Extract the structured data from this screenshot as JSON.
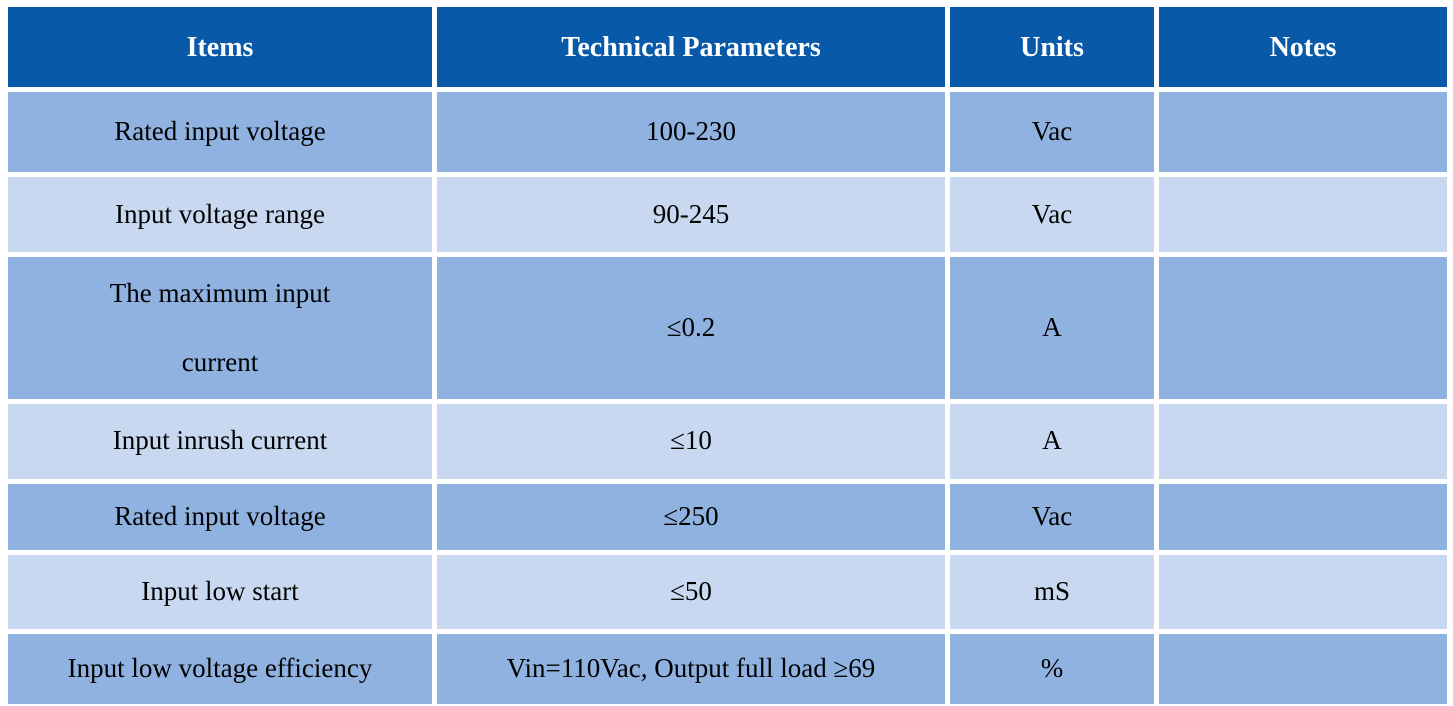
{
  "table": {
    "columns": [
      {
        "label": "Items"
      },
      {
        "label": "Technical Parameters"
      },
      {
        "label": "Units"
      },
      {
        "label": "Notes"
      }
    ],
    "rows": [
      {
        "item": "Rated input voltage",
        "param": "100-230",
        "units": "Vac",
        "notes": ""
      },
      {
        "item": "Input voltage range",
        "param": "90-245",
        "units": "Vac",
        "notes": ""
      },
      {
        "item": "The maximum input current",
        "param": "≤0.2",
        "units": "A",
        "notes": ""
      },
      {
        "item": "Input inrush current",
        "param": "≤10",
        "units": "A",
        "notes": ""
      },
      {
        "item": "Rated input voltage",
        "param": "≤250",
        "units": "Vac",
        "notes": ""
      },
      {
        "item": "Input low start",
        "param": "≤50",
        "units": "mS",
        "notes": ""
      },
      {
        "item": "Input low voltage efficiency",
        "param": "Vin=110Vac, Output full load ≥69",
        "units": "%",
        "notes": ""
      }
    ]
  },
  "colors": {
    "header_bg": "#085aa9",
    "header_text": "#ffffff",
    "row_medium": "#8fb2e0",
    "row_light": "#c8d8f0",
    "body_text": "#000000",
    "border": "#ffffff"
  }
}
